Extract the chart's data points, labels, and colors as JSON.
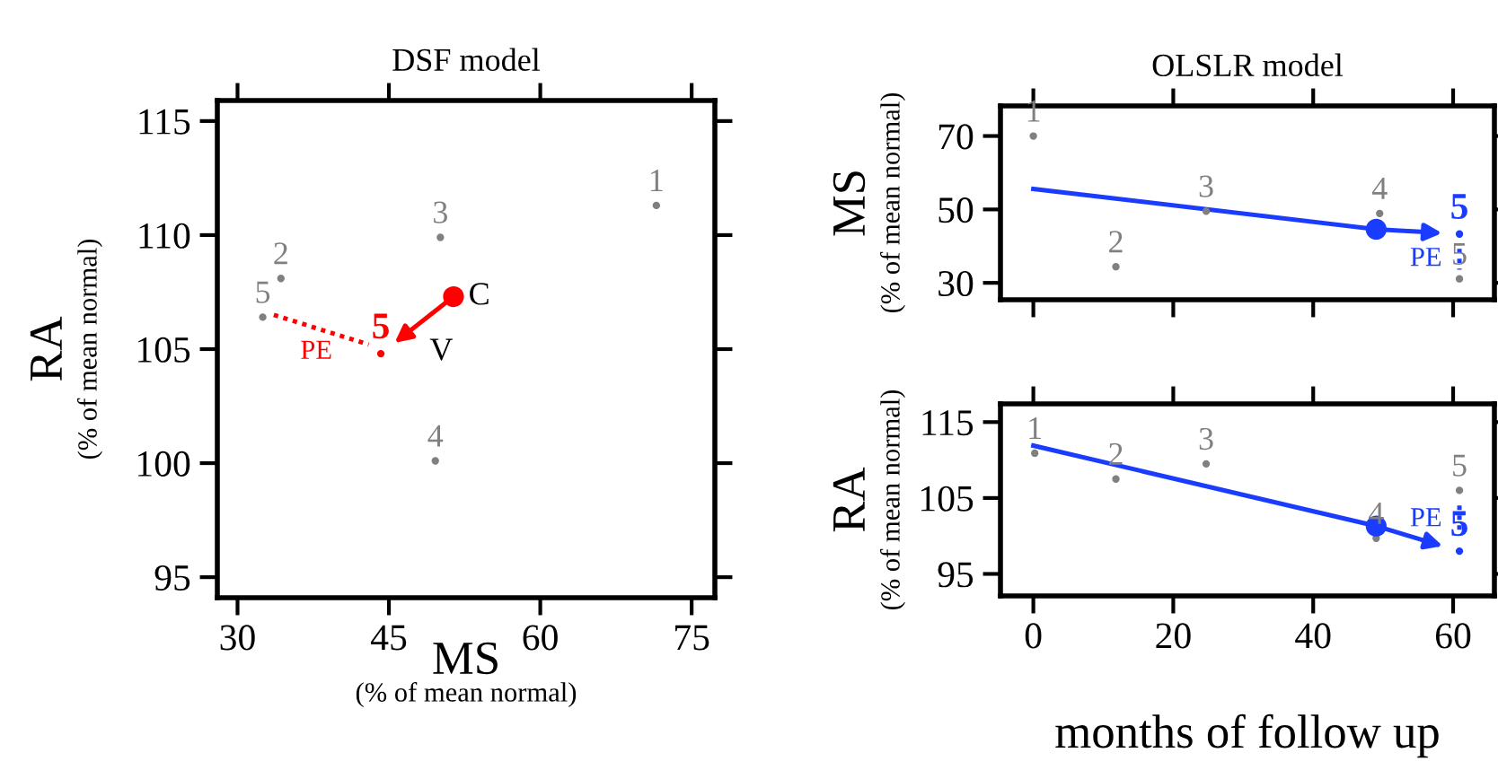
{
  "chart_data": [
    {
      "type": "scatter",
      "title": "DSF model",
      "xlabel": "MS\n(% of mean normal)",
      "ylabel": "RA\n(% of mean normal)",
      "xlim": [
        28.0,
        77.3
      ],
      "xticks": [
        30,
        45,
        60,
        75
      ],
      "ylim": [
        94.1,
        115.9
      ],
      "yticks": [
        95,
        100,
        105,
        110,
        115
      ],
      "grid": false,
      "legend": false,
      "marker": "circle",
      "series": [
        {
          "color": "#808080",
          "x": [
            71.5,
            34.3,
            50.1,
            49.6,
            32.5
          ],
          "values": [
            111.3,
            108.1,
            109.9,
            100.1,
            106.4
          ]
        },
        {
          "type": "line",
          "color": "#ff0000",
          "line_style": "dotted",
          "marker": "none",
          "x": [
            33.6,
            43.0
          ],
          "values": [
            106.5,
            105.2
          ]
        },
        {
          "color": "#ff0000",
          "marker": "circle",
          "x": [
            51.4
          ],
          "values": [
            107.3
          ]
        },
        {
          "color": "#ff0000",
          "x": [
            44.2
          ],
          "values": [
            104.8
          ]
        }
      ],
      "annotations": [
        {
          "text": "1",
          "x": 71.5,
          "y": 111.3
        },
        {
          "text": "2",
          "x": 34.3,
          "y": 108.1
        },
        {
          "text": "3",
          "x": 50.1,
          "y": 109.9
        },
        {
          "text": "4",
          "x": 49.6,
          "y": 100.1
        },
        {
          "text": "5",
          "x": 32.5,
          "y": 106.4
        },
        {
          "text": "5",
          "x": 44.2,
          "y": 104.8
        },
        {
          "text": "C",
          "x": 51.4,
          "y": 107.3
        },
        "V",
        {
          "text": "PE",
          "x": 38.3,
          "y": 105.85
        }
      ]
    },
    {
      "type": "scatter",
      "title": "OLSLR model",
      "ylabel": "MS\n(% of mean normal)",
      "xlim": [
        -4.7,
        65.9
      ],
      "xticks": [
        0,
        20,
        40,
        60
      ],
      "ylim": [
        25.4,
        78.2
      ],
      "yticks": [
        30,
        50,
        70
      ],
      "tick_labels": "y",
      "grid": false,
      "legend": false,
      "marker": "circle",
      "series": [
        {
          "color": "#808080",
          "x": [
            0,
            11.8,
            24.7,
            49.5,
            60.9
          ],
          "values": [
            70,
            34.4,
            49.5,
            48.9,
            31.1
          ]
        },
        {
          "type": "line",
          "color": "#1a3cff",
          "line_style": "solid",
          "marker": "none",
          "x": [
            0,
            49
          ],
          "values": [
            55.6,
            44.6
          ]
        },
        {
          "type": "line",
          "color": "#1a3cff",
          "line_style": "dotted",
          "marker": "none",
          "x": [
            60.9,
            60.9
          ],
          "values": [
            39.3,
            33.6
          ]
        },
        {
          "color": "#1a3cff",
          "marker": "circle",
          "x": [
            49
          ],
          "values": [
            44.6
          ]
        },
        {
          "color": "#1a3cff",
          "x": [
            60.9
          ],
          "values": [
            43.3
          ]
        }
      ],
      "annotations": [
        {
          "text": "1",
          "x": 0,
          "y": 70
        },
        {
          "text": "2",
          "x": 11.8,
          "y": 34.4
        },
        {
          "text": "3",
          "x": 24.7,
          "y": 49.5
        },
        {
          "text": "4",
          "x": 49.5,
          "y": 48.9
        },
        {
          "text": "5",
          "x": 60.9,
          "y": 31.1
        },
        {
          "text": "5",
          "x": 60.9,
          "y": 43.3
        },
        {
          "text": "PE",
          "x": 60.9,
          "y": 36.45
        }
      ]
    },
    {
      "type": "scatter",
      "xlabel": "months of follow up",
      "ylabel": "RA\n(% of mean normal)",
      "xlim": [
        -4.7,
        65.9
      ],
      "xticks": [
        0,
        20,
        40,
        60
      ],
      "ylim": [
        92.1,
        117.4
      ],
      "yticks": [
        95,
        105,
        115
      ],
      "grid": false,
      "legend": false,
      "marker": "circle",
      "series": [
        {
          "color": "#808080",
          "x": [
            0.2,
            11.8,
            24.7,
            49,
            60.9
          ],
          "values": [
            110.9,
            107.5,
            109.5,
            99.7,
            106.0
          ]
        },
        {
          "type": "line",
          "color": "#1a3cff",
          "line_style": "solid",
          "marker": "none",
          "x": [
            0,
            49
          ],
          "values": [
            111.9,
            101.3
          ]
        },
        {
          "type": "line",
          "color": "#1a3cff",
          "line_style": "dotted",
          "marker": "none",
          "x": [
            60.9,
            60.9
          ],
          "values": [
            104.0,
            100.3
          ]
        },
        {
          "color": "#1a3cff",
          "marker": "circle",
          "x": [
            49
          ],
          "values": [
            101.3
          ]
        },
        {
          "color": "#1a3cff",
          "x": [
            60.9
          ],
          "values": [
            98.0
          ]
        }
      ],
      "annotations": [
        {
          "text": "1",
          "x": 0.2,
          "y": 110.9
        },
        {
          "text": "2",
          "x": 11.8,
          "y": 107.5
        },
        {
          "text": "3",
          "x": 24.7,
          "y": 109.5
        },
        {
          "text": "4",
          "x": 49,
          "y": 99.7
        },
        {
          "text": "5",
          "x": 60.9,
          "y": 106.0
        },
        {
          "text": "5",
          "x": 60.9,
          "y": 98.0
        },
        {
          "text": "PE",
          "x": 60.9,
          "y": 102.15
        }
      ]
    }
  ]
}
